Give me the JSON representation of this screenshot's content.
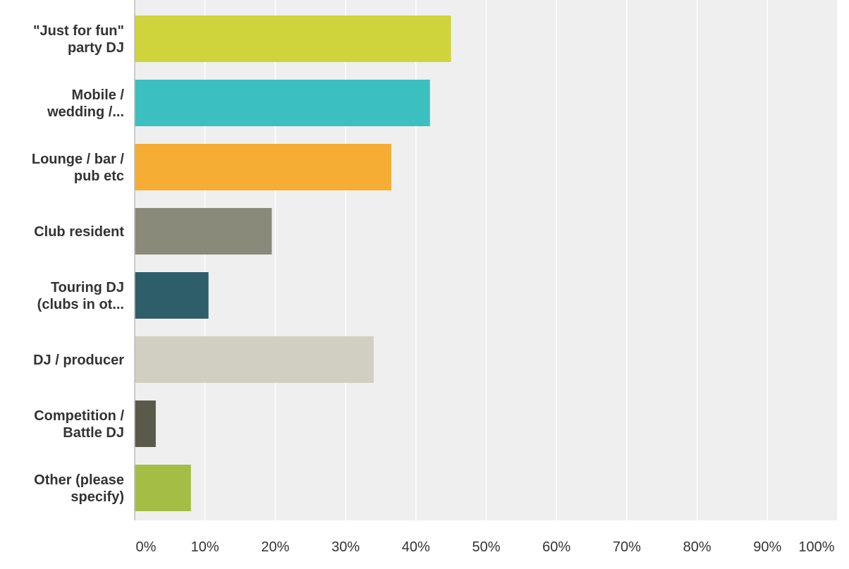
{
  "chart_data": {
    "type": "bar",
    "orientation": "horizontal",
    "categories": [
      [
        "\"Just for fun\"",
        "party DJ"
      ],
      [
        "Mobile /",
        "wedding /..."
      ],
      [
        "Lounge / bar /",
        "pub etc"
      ],
      [
        "Club resident"
      ],
      [
        "Touring DJ",
        "(clubs in ot..."
      ],
      [
        "DJ / producer"
      ],
      [
        "Competition /",
        "Battle DJ"
      ],
      [
        "Other (please",
        "specify)"
      ]
    ],
    "values": [
      45,
      42,
      36.5,
      19.5,
      10.5,
      34,
      3,
      8
    ],
    "colors": [
      "#cfd33c",
      "#3bbfbf",
      "#f5ad33",
      "#8a8a7a",
      "#2e5e6a",
      "#d0cfc2",
      "#5a5a4a",
      "#a4bd45"
    ],
    "xlim": [
      0,
      100
    ],
    "xticks": [
      0,
      10,
      20,
      30,
      40,
      50,
      60,
      70,
      80,
      90,
      100
    ],
    "xtick_labels": [
      "0%",
      "10%",
      "20%",
      "30%",
      "40%",
      "50%",
      "60%",
      "70%",
      "80%",
      "90%",
      "100%"
    ],
    "grid": true,
    "background": "#efefef",
    "gridline_color": "#ffffff",
    "title": "",
    "xlabel": "",
    "ylabel": ""
  }
}
